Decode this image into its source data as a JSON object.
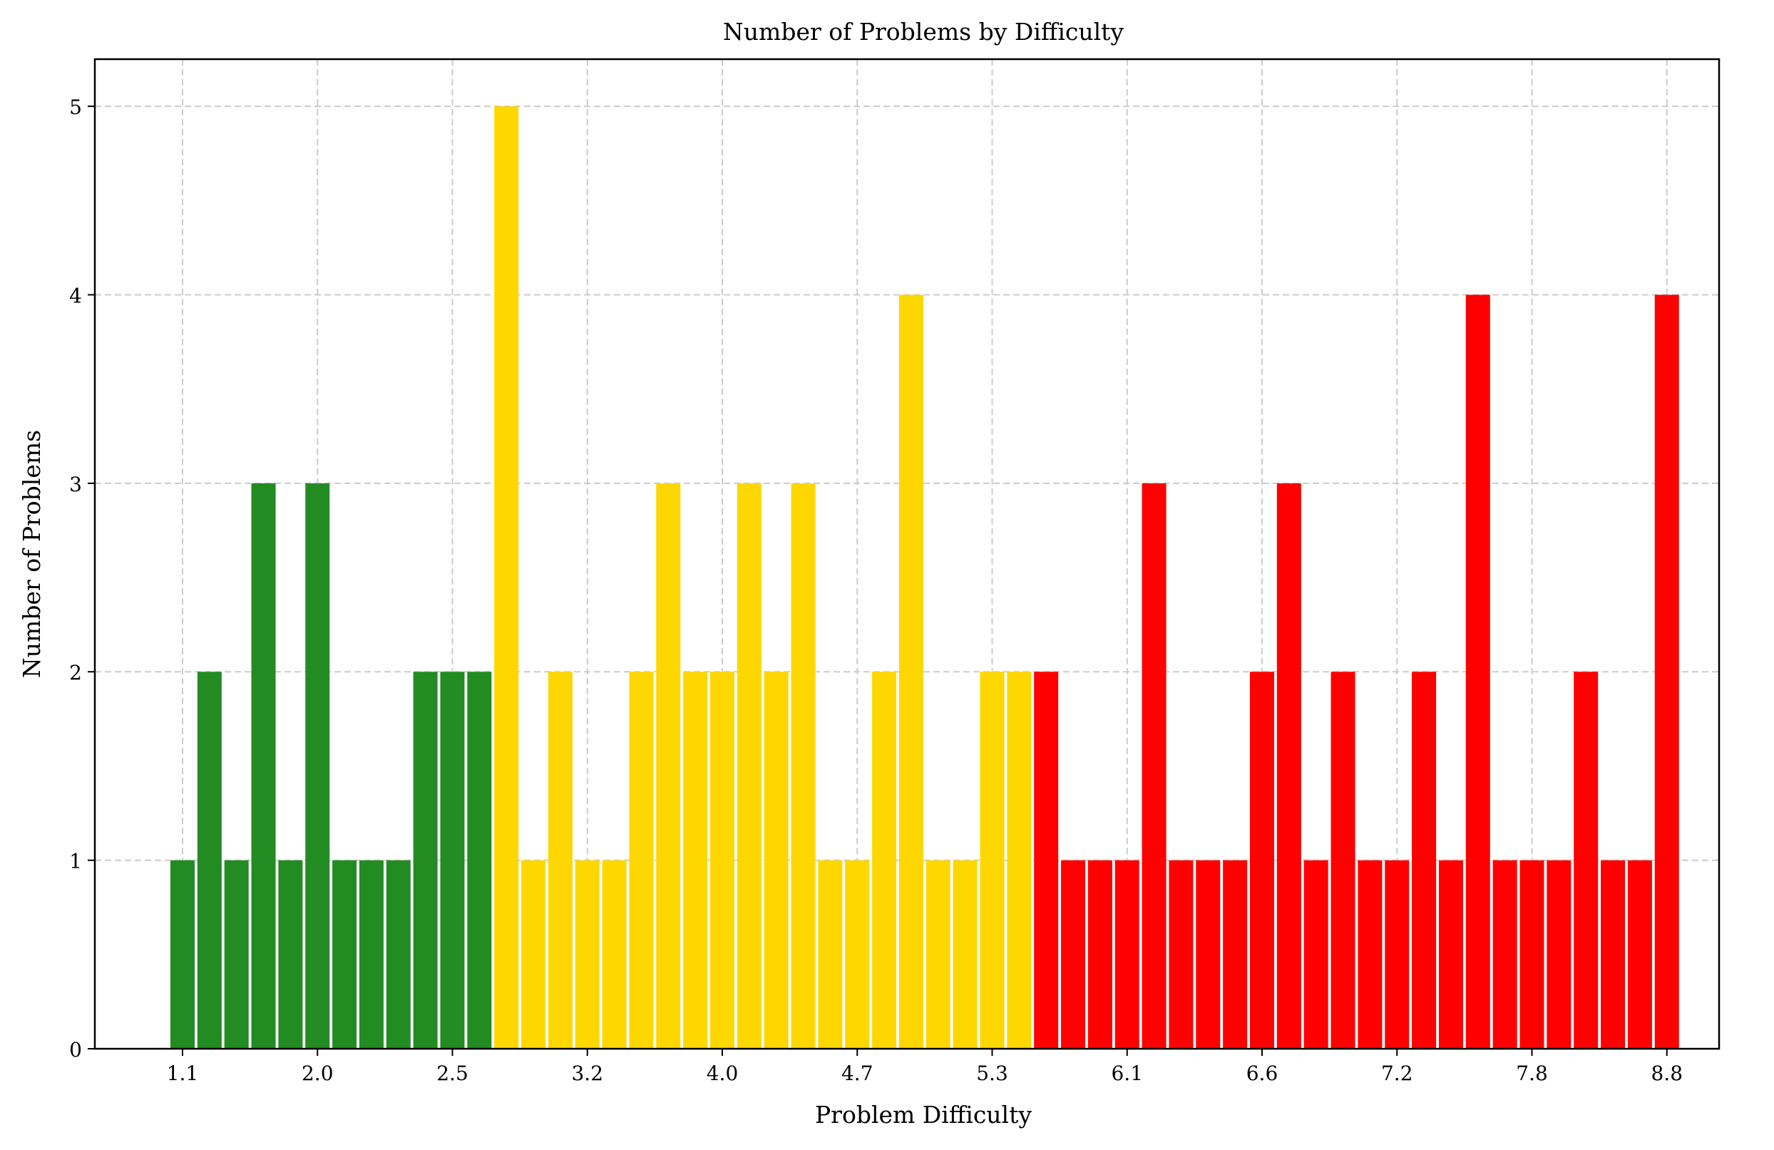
{
  "chart_data": {
    "type": "bar",
    "title": "Number of Problems by Difficulty",
    "xlabel": "Problem Difficulty",
    "ylabel": "Number of Problems",
    "ylim": [
      0,
      5.25
    ],
    "y_ticks": [
      0,
      1,
      2,
      3,
      4,
      5
    ],
    "x_tick_labels": [
      "1.1",
      "2.0",
      "2.5",
      "3.2",
      "4.0",
      "4.7",
      "5.3",
      "6.1",
      "6.6",
      "7.2",
      "7.8",
      "8.8"
    ],
    "grid": true,
    "legend": "none",
    "colors": {
      "easy": "#228b22",
      "medium": "#ffd700",
      "hard": "#ff0000",
      "grid": "#cccccc"
    },
    "bars": [
      {
        "value": 1,
        "color": "easy"
      },
      {
        "value": 2,
        "color": "easy"
      },
      {
        "value": 1,
        "color": "easy"
      },
      {
        "value": 3,
        "color": "easy"
      },
      {
        "value": 1,
        "color": "easy"
      },
      {
        "value": 3,
        "color": "easy"
      },
      {
        "value": 1,
        "color": "easy"
      },
      {
        "value": 1,
        "color": "easy"
      },
      {
        "value": 1,
        "color": "easy"
      },
      {
        "value": 2,
        "color": "easy"
      },
      {
        "value": 2,
        "color": "easy"
      },
      {
        "value": 2,
        "color": "easy"
      },
      {
        "value": 5,
        "color": "medium"
      },
      {
        "value": 1,
        "color": "medium"
      },
      {
        "value": 2,
        "color": "medium"
      },
      {
        "value": 1,
        "color": "medium"
      },
      {
        "value": 1,
        "color": "medium"
      },
      {
        "value": 2,
        "color": "medium"
      },
      {
        "value": 3,
        "color": "medium"
      },
      {
        "value": 2,
        "color": "medium"
      },
      {
        "value": 2,
        "color": "medium"
      },
      {
        "value": 3,
        "color": "medium"
      },
      {
        "value": 2,
        "color": "medium"
      },
      {
        "value": 3,
        "color": "medium"
      },
      {
        "value": 1,
        "color": "medium"
      },
      {
        "value": 1,
        "color": "medium"
      },
      {
        "value": 2,
        "color": "medium"
      },
      {
        "value": 4,
        "color": "medium"
      },
      {
        "value": 1,
        "color": "medium"
      },
      {
        "value": 1,
        "color": "medium"
      },
      {
        "value": 2,
        "color": "medium"
      },
      {
        "value": 2,
        "color": "medium"
      },
      {
        "value": 2,
        "color": "hard"
      },
      {
        "value": 1,
        "color": "hard"
      },
      {
        "value": 1,
        "color": "hard"
      },
      {
        "value": 1,
        "color": "hard"
      },
      {
        "value": 3,
        "color": "hard"
      },
      {
        "value": 1,
        "color": "hard"
      },
      {
        "value": 1,
        "color": "hard"
      },
      {
        "value": 1,
        "color": "hard"
      },
      {
        "value": 2,
        "color": "hard"
      },
      {
        "value": 3,
        "color": "hard"
      },
      {
        "value": 1,
        "color": "hard"
      },
      {
        "value": 2,
        "color": "hard"
      },
      {
        "value": 1,
        "color": "hard"
      },
      {
        "value": 1,
        "color": "hard"
      },
      {
        "value": 2,
        "color": "hard"
      },
      {
        "value": 1,
        "color": "hard"
      },
      {
        "value": 4,
        "color": "hard"
      },
      {
        "value": 1,
        "color": "hard"
      },
      {
        "value": 1,
        "color": "hard"
      },
      {
        "value": 1,
        "color": "hard"
      },
      {
        "value": 2,
        "color": "hard"
      },
      {
        "value": 1,
        "color": "hard"
      },
      {
        "value": 1,
        "color": "hard"
      },
      {
        "value": 4,
        "color": "hard"
      }
    ]
  }
}
